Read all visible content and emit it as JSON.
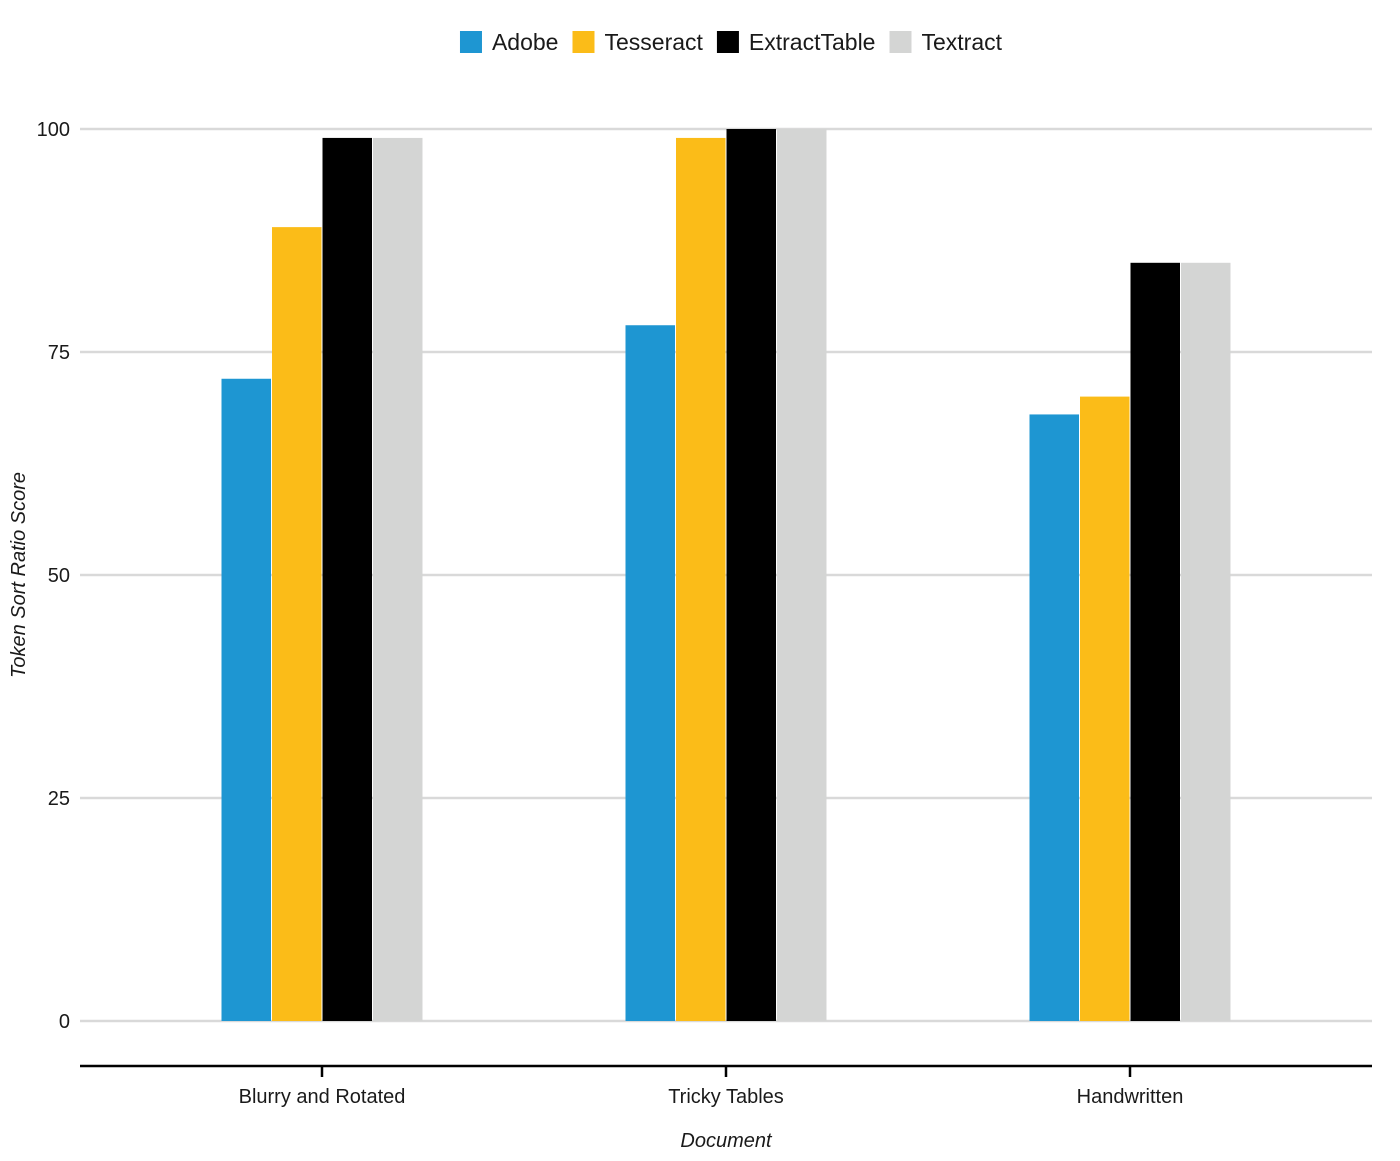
{
  "chart_data": {
    "type": "bar",
    "title": "",
    "xlabel": "Document",
    "ylabel": "Token Sort Ratio Score",
    "categories": [
      "Blurry and Rotated",
      "Tricky Tables",
      "Handwritten"
    ],
    "series": [
      {
        "name": "Adobe",
        "color": "#1e96d2",
        "values": [
          72,
          78,
          68
        ]
      },
      {
        "name": "Tesseract",
        "color": "#fbbc18",
        "values": [
          89,
          99,
          70
        ]
      },
      {
        "name": "ExtractTable",
        "color": "#000000",
        "values": [
          99,
          100,
          85
        ]
      },
      {
        "name": "Textract",
        "color": "#d4d5d4",
        "values": [
          99,
          100,
          85
        ]
      }
    ],
    "ylim": [
      0,
      100
    ],
    "yticks": [
      0,
      25,
      50,
      75,
      100
    ],
    "grid": true,
    "legend_position": "top-center"
  }
}
